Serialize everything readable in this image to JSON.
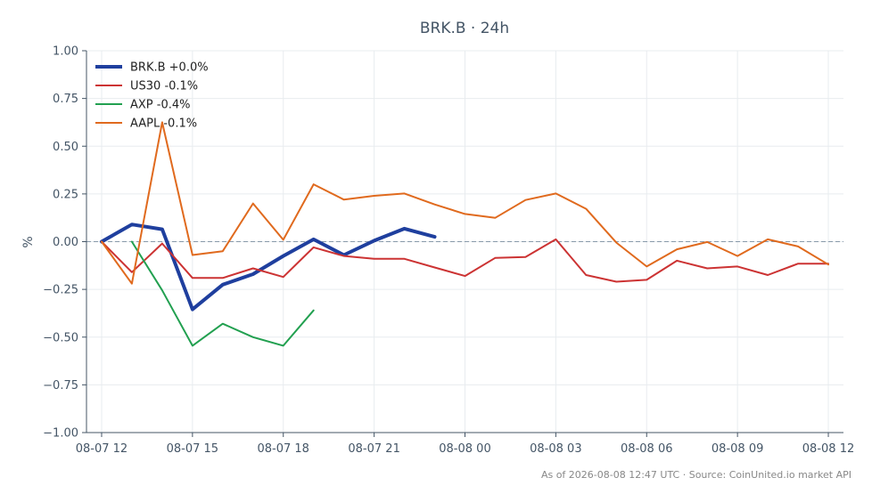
{
  "chart_data": {
    "type": "line",
    "title": "BRK.B · 24h",
    "xlabel": "",
    "ylabel": "%",
    "ylim": [
      -1.0,
      1.0
    ],
    "yticks": [
      1.0,
      0.75,
      0.5,
      0.25,
      0.0,
      -0.25,
      -0.5,
      -0.75,
      -1.0
    ],
    "ytick_labels": [
      "1.00",
      "0.75",
      "0.50",
      "0.25",
      "0.00",
      "−0.25",
      "−0.50",
      "−0.75",
      "−1.00"
    ],
    "xlim": [
      -0.5,
      24.5
    ],
    "xticks": [
      0,
      3,
      6,
      9,
      12,
      15,
      18,
      21,
      24
    ],
    "xtick_labels": [
      "08-07 12",
      "08-07 15",
      "08-07 18",
      "08-07 21",
      "08-08 00",
      "08-08 03",
      "08-08 06",
      "08-08 09",
      "08-08 12"
    ],
    "x_unit": "hours since 08-07 12:00",
    "grid": true,
    "reference_line": 0.0,
    "legend_position": "top-left",
    "series": [
      {
        "name": "BRK.B +0.0%",
        "color": "#1f3f9e",
        "width": 4,
        "x": [
          0,
          1,
          2,
          3,
          4,
          5,
          6,
          7,
          8,
          9,
          10,
          11
        ],
        "values": [
          0.0,
          0.09,
          0.065,
          -0.355,
          -0.225,
          -0.17,
          -0.075,
          0.012,
          -0.07,
          0.005,
          0.068,
          0.025
        ]
      },
      {
        "name": "US30 -0.1%",
        "color": "#cc3333",
        "width": 2,
        "x": [
          0,
          1,
          2,
          3,
          4,
          5,
          6,
          7,
          8,
          9,
          10,
          11,
          12,
          13,
          14,
          15,
          16,
          17,
          18,
          19,
          20,
          21,
          22,
          23,
          24
        ],
        "values": [
          0.0,
          -0.16,
          -0.01,
          -0.19,
          -0.19,
          -0.14,
          -0.185,
          -0.03,
          -0.075,
          -0.09,
          -0.09,
          -0.135,
          -0.18,
          -0.085,
          -0.08,
          0.012,
          -0.175,
          -0.21,
          -0.2,
          -0.1,
          -0.14,
          -0.13,
          -0.175,
          -0.115,
          -0.115
        ]
      },
      {
        "name": "AXP -0.4%",
        "color": "#22a050",
        "width": 2,
        "x": [
          1,
          2,
          3,
          4,
          5,
          6,
          7
        ],
        "values": [
          0.0,
          -0.255,
          -0.545,
          -0.43,
          -0.5,
          -0.545,
          -0.36
        ]
      },
      {
        "name": "AAPL -0.1%",
        "color": "#e06a1e",
        "width": 2,
        "x": [
          0,
          1,
          2,
          3,
          4,
          5,
          6,
          7,
          8,
          9,
          10,
          11,
          12,
          13,
          14,
          15,
          16,
          17,
          18,
          19,
          20,
          21,
          22,
          23,
          24
        ],
        "values": [
          0.0,
          -0.22,
          0.625,
          -0.07,
          -0.05,
          0.2,
          0.01,
          0.3,
          0.22,
          0.24,
          0.252,
          0.195,
          0.145,
          0.125,
          0.218,
          0.252,
          0.172,
          -0.005,
          -0.13,
          -0.04,
          -0.002,
          -0.075,
          0.012,
          -0.025,
          -0.12
        ]
      }
    ]
  },
  "footer": "As of 2026-08-08 12:47 UTC · Source: CoinUnited.io market API",
  "colors": {
    "axis": "#445566",
    "grid": "#e8ecef",
    "reference_line": "#8899aa"
  }
}
